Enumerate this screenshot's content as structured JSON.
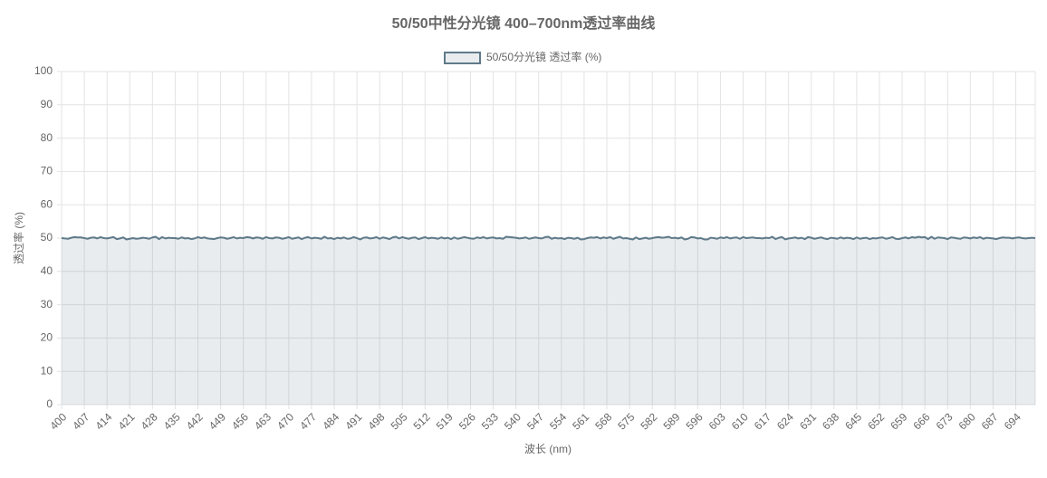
{
  "chart_data": {
    "type": "line",
    "title": "50/50中性分光镜 400–700nm透过率曲线",
    "x_label": "波长 (nm)",
    "y_label": "透过率 (%)",
    "categories": [
      "400",
      null,
      null,
      null,
      null,
      null,
      null,
      "407",
      null,
      null,
      null,
      null,
      null,
      null,
      "414",
      null,
      null,
      null,
      null,
      null,
      null,
      "421",
      null,
      null,
      null,
      null,
      null,
      null,
      "428",
      null,
      null,
      null,
      null,
      null,
      null,
      "435",
      null,
      null,
      null,
      null,
      null,
      null,
      "442",
      null,
      null,
      null,
      null,
      null,
      null,
      "449",
      null,
      null,
      null,
      null,
      null,
      null,
      "456",
      null,
      null,
      null,
      null,
      null,
      null,
      "463",
      null,
      null,
      null,
      null,
      null,
      null,
      "470",
      null,
      null,
      null,
      null,
      null,
      null,
      "477",
      null,
      null,
      null,
      null,
      null,
      null,
      "484",
      null,
      null,
      null,
      null,
      null,
      null,
      "491",
      null,
      null,
      null,
      null,
      null,
      null,
      "498",
      null,
      null,
      null,
      null,
      null,
      null,
      "505",
      null,
      null,
      null,
      null,
      null,
      null,
      "512",
      null,
      null,
      null,
      null,
      null,
      null,
      "519",
      null,
      null,
      null,
      null,
      null,
      null,
      "526",
      null,
      null,
      null,
      null,
      null,
      null,
      "533",
      null,
      null,
      null,
      null,
      null,
      null,
      "540",
      null,
      null,
      null,
      null,
      null,
      null,
      "547",
      null,
      null,
      null,
      null,
      null,
      null,
      "554",
      null,
      null,
      null,
      null,
      null,
      null,
      "561",
      null,
      null,
      null,
      null,
      null,
      null,
      "568",
      null,
      null,
      null,
      null,
      null,
      null,
      "575",
      null,
      null,
      null,
      null,
      null,
      null,
      "582",
      null,
      null,
      null,
      null,
      null,
      null,
      "589",
      null,
      null,
      null,
      null,
      null,
      null,
      "596",
      null,
      null,
      null,
      null,
      null,
      null,
      "603",
      null,
      null,
      null,
      null,
      null,
      null,
      "610",
      null,
      null,
      null,
      null,
      null,
      null,
      "617",
      null,
      null,
      null,
      null,
      null,
      null,
      "624",
      null,
      null,
      null,
      null,
      null,
      null,
      "631",
      null,
      null,
      null,
      null,
      null,
      null,
      "638",
      null,
      null,
      null,
      null,
      null,
      null,
      "645",
      null,
      null,
      null,
      null,
      null,
      null,
      "652",
      null,
      null,
      null,
      null,
      null,
      null,
      "659",
      null,
      null,
      null,
      null,
      null,
      null,
      "666",
      null,
      null,
      null,
      null,
      null,
      null,
      "673",
      null,
      null,
      null,
      null,
      null,
      null,
      "680",
      null,
      null,
      null,
      null,
      null,
      null,
      "687",
      null,
      null,
      null,
      null,
      null,
      null,
      "694",
      null,
      null,
      null,
      null,
      null,
      null
    ],
    "series": [
      {
        "name": "50/50分光镜 透过率 (%)",
        "color": "#5f7a8a",
        "values": [
          50.0,
          49.9,
          49.8,
          50.1,
          50.3,
          50.2,
          50.2,
          50.0,
          49.8,
          50.1,
          50.2,
          49.9,
          50.3,
          50.0,
          49.9,
          50.1,
          50.3,
          49.7,
          49.9,
          50.2,
          49.6,
          49.8,
          50.0,
          49.8,
          49.9,
          50.1,
          50.0,
          49.8,
          50.2,
          50.4,
          49.7,
          50.3,
          49.9,
          50.1,
          50.0,
          50.0,
          49.8,
          50.2,
          49.9,
          50.0,
          49.7,
          49.9,
          50.3,
          50.0,
          50.2,
          49.9,
          49.8,
          49.7,
          50.0,
          50.2,
          50.1,
          49.8,
          50.0,
          50.3,
          49.9,
          50.1,
          50.0,
          50.3,
          50.2,
          49.9,
          50.2,
          50.1,
          49.8,
          50.3,
          50.0,
          49.9,
          50.2,
          50.1,
          49.8,
          50.0,
          50.3,
          49.8,
          50.0,
          50.2,
          49.7,
          50.1,
          50.3,
          49.9,
          50.1,
          50.0,
          49.8,
          50.4,
          49.9,
          50.0,
          49.7,
          50.1,
          49.9,
          50.2,
          49.8,
          49.9,
          50.3,
          50.0,
          49.6,
          50.1,
          50.2,
          49.9,
          50.0,
          50.3,
          49.8,
          50.2,
          50.0,
          49.7,
          50.2,
          50.4,
          49.9,
          50.3,
          50.0,
          49.8,
          50.1,
          50.2,
          49.7,
          50.0,
          50.3,
          49.9,
          50.1,
          50.0,
          49.8,
          50.2,
          49.9,
          50.1,
          49.7,
          50.2,
          49.8,
          50.0,
          50.3,
          50.1,
          49.9,
          49.8,
          50.2,
          50.0,
          50.3,
          49.9,
          50.1,
          50.2,
          49.9,
          50.0,
          49.8,
          50.4,
          50.3,
          50.2,
          50.1,
          49.9,
          50.0,
          50.2,
          49.8,
          50.0,
          50.2,
          50.0,
          49.9,
          50.3,
          50.4,
          49.8,
          50.1,
          49.9,
          50.0,
          49.7,
          50.1,
          50.0,
          49.8,
          50.1,
          49.6,
          49.7,
          50.0,
          50.2,
          50.1,
          50.3,
          49.9,
          50.2,
          50.0,
          50.3,
          49.8,
          50.1,
          50.4,
          49.9,
          50.0,
          49.8,
          49.6,
          50.2,
          49.7,
          49.9,
          50.1,
          49.8,
          50.0,
          50.2,
          50.3,
          50.1,
          50.2,
          50.4,
          50.0,
          50.1,
          49.9,
          50.2,
          49.6,
          49.8,
          50.3,
          50.2,
          49.9,
          50.0,
          49.6,
          49.6,
          50.1,
          50.0,
          49.8,
          50.2,
          50.0,
          50.3,
          49.9,
          50.1,
          50.2,
          49.8,
          50.3,
          50.0,
          50.1,
          50.2,
          50.0,
          50.0,
          49.9,
          50.1,
          50.0,
          50.4,
          49.7,
          50.1,
          50.3,
          49.6,
          49.9,
          50.0,
          50.2,
          49.9,
          50.1,
          49.7,
          50.3,
          50.1,
          49.8,
          50.0,
          50.2,
          49.9,
          49.7,
          50.1,
          50.0,
          49.8,
          50.2,
          49.9,
          50.1,
          50.0,
          49.7,
          50.2,
          49.8,
          50.0,
          50.1,
          49.7,
          50.0,
          49.9,
          50.1,
          50.2,
          49.8,
          50.0,
          50.3,
          49.8,
          49.7,
          50.0,
          50.2,
          49.9,
          50.3,
          50.1,
          50.4,
          50.2,
          50.3,
          49.7,
          50.4,
          49.8,
          50.2,
          50.1,
          50.0,
          49.7,
          50.2,
          50.1,
          49.9,
          49.8,
          50.2,
          50.1,
          49.9,
          50.2,
          50.0,
          50.3,
          49.8,
          50.1,
          50.0,
          49.9,
          49.7,
          50.0,
          50.2,
          50.1,
          50.1,
          49.9,
          50.1,
          50.2,
          50.0,
          49.9,
          50.0,
          50.1,
          50.0
        ]
      }
    ],
    "ylim": [
      0,
      100
    ],
    "yticks": [
      0,
      10,
      20,
      30,
      40,
      50,
      60,
      70,
      80,
      90,
      100
    ],
    "grid": true,
    "fill": true,
    "legend": "top"
  }
}
